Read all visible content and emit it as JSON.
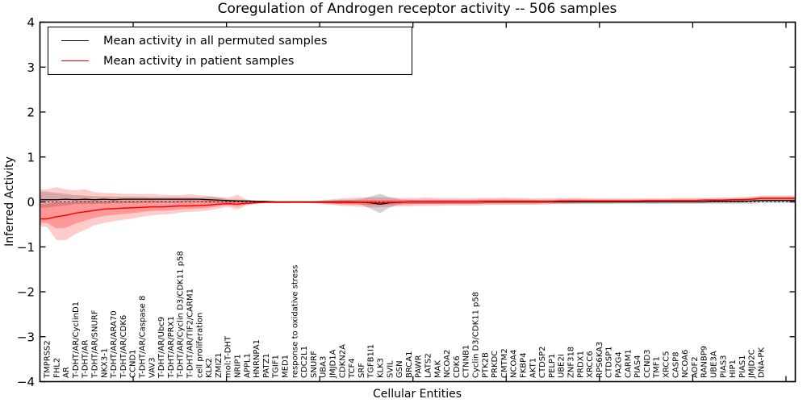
{
  "chart_data": {
    "type": "line",
    "title": "Coregulation of Androgen receptor activity -- 506 samples",
    "xlabel": "Cellular Entities",
    "ylabel": "Inferred Activity",
    "ylim": [
      -4,
      4
    ],
    "y_ticks": [
      4,
      3,
      2,
      1,
      0,
      -1,
      -2,
      -3,
      -4
    ],
    "grid": false,
    "legend_position": "upper left",
    "zero_line": "dotted",
    "colors": {
      "permuted": "#000000",
      "patient": "#ff0000",
      "permuted_band": "#8c8c8c",
      "patient_band": "#ff0000"
    },
    "legend": [
      {
        "label": "Mean activity in all permuted samples",
        "color": "#000000"
      },
      {
        "label": "Mean activity in patient samples",
        "color": "#ff0000"
      }
    ],
    "categories": [
      "TMPRSS2",
      "FHL2",
      "AR",
      "T-DHT/AR/CyclinD1",
      "T-DHT/AR",
      "T-DHT/AR/SNURF",
      "NKX3-1",
      "T-DHT/AR/ARA70",
      "T-DHT/AR/CDK6",
      "CCND1",
      "T-DHT/AR/Caspase 8",
      "VAV3",
      "T-DHT/AR/Ubc9",
      "T-DHT/AR/PRX1",
      "T-DHT/AR/Cyclin D3/CDK11 p58",
      "T-DHT/AR/TIF2/CARM1",
      "cell proliferation",
      "KLK2",
      "ZMIZ1",
      "mol:T-DHT",
      "NRIP1",
      "APPL1",
      "HNRNPA1",
      "PATZ1",
      "TGIF1",
      "MED1",
      "response to oxidative stress",
      "CDC2L1",
      "SNURF",
      "UBA3",
      "JMJD1A",
      "CDKN2A",
      "TCF4",
      "SRF",
      "TGFB1I1",
      "KLK3",
      "SVIL",
      "GSN",
      "BRCA1",
      "PAWR",
      "LATS2",
      "MAK",
      "NCOA2",
      "CDK6",
      "CTNNB1",
      "Cyclin D3/CDK11 p58",
      "PTK2B",
      "PRKDC",
      "CMTM2",
      "NCOA4",
      "FKBP4",
      "AKT1",
      "CTDSP2",
      "PELP1",
      "UBE2I",
      "ZNF318",
      "PRDX1",
      "XRCC6",
      "RPS6KA3",
      "CTDSP1",
      "PA2G4",
      "CARM1",
      "PIAS4",
      "CCND3",
      "TMF1",
      "XRCC5",
      "CASP8",
      "NCOA6",
      "AOF2",
      "RANBP9",
      "UBE3A",
      "PIAS3",
      "HIP1",
      "PIAS1",
      "JMJD2C",
      "DNA-PK"
    ],
    "series": [
      {
        "name": "patient_mean",
        "values": [
          -0.38,
          -0.33,
          -0.3,
          -0.25,
          -0.22,
          -0.19,
          -0.16,
          -0.15,
          -0.14,
          -0.13,
          -0.12,
          -0.11,
          -0.11,
          -0.1,
          -0.09,
          -0.09,
          -0.08,
          -0.07,
          -0.05,
          -0.04,
          -0.05,
          -0.03,
          -0.02,
          -0.01,
          -0.01,
          -0.01,
          -0.01,
          -0.01,
          -0.01,
          -0.01,
          -0.01,
          -0.01,
          -0.01,
          -0.01,
          -0.01,
          -0.02,
          -0.01,
          -0.01,
          0,
          0,
          0,
          0,
          0,
          0,
          0,
          0,
          0.01,
          0.01,
          0.01,
          0.01,
          0.01,
          0.01,
          0.01,
          0.01,
          0.02,
          0.02,
          0.02,
          0.02,
          0.02,
          0.02,
          0.02,
          0.02,
          0.02,
          0.03,
          0.03,
          0.03,
          0.03,
          0.03,
          0.03,
          0.04,
          0.04,
          0.04,
          0.05,
          0.05,
          0.06,
          0.08
        ]
      },
      {
        "name": "patient_band_upper",
        "values": [
          0.28,
          0.33,
          0.28,
          0.26,
          0.28,
          0.22,
          0.2,
          0.2,
          0.18,
          0.18,
          0.17,
          0.18,
          0.16,
          0.15,
          0.15,
          0.17,
          0.15,
          0.13,
          0.11,
          0.09,
          0.16,
          0.05,
          0.03,
          0.02,
          0.02,
          0.02,
          0.02,
          0.02,
          0.02,
          0.04,
          0.06,
          0.08,
          0.09,
          0.1,
          0.1,
          0.1,
          0.1,
          0.09,
          0.09,
          0.09,
          0.1,
          0.09,
          0.09,
          0.09,
          0.08,
          0.09,
          0.09,
          0.09,
          0.1,
          0.09,
          0.09,
          0.08,
          0.08,
          0.08,
          0.09,
          0.09,
          0.09,
          0.08,
          0.08,
          0.08,
          0.08,
          0.08,
          0.08,
          0.08,
          0.08,
          0.08,
          0.09,
          0.09,
          0.09,
          0.09,
          0.09,
          0.1,
          0.1,
          0.11,
          0.12,
          0.14
        ]
      },
      {
        "name": "patient_band_lower",
        "values": [
          -0.55,
          -0.85,
          -0.85,
          -0.72,
          -0.62,
          -0.52,
          -0.47,
          -0.43,
          -0.4,
          -0.37,
          -0.33,
          -0.3,
          -0.28,
          -0.27,
          -0.24,
          -0.22,
          -0.21,
          -0.19,
          -0.15,
          -0.11,
          -0.17,
          -0.08,
          -0.04,
          -0.03,
          -0.03,
          -0.03,
          -0.02,
          -0.02,
          -0.03,
          -0.05,
          -0.07,
          -0.09,
          -0.1,
          -0.11,
          -0.12,
          -0.12,
          -0.11,
          -0.1,
          -0.1,
          -0.09,
          -0.09,
          -0.09,
          -0.08,
          -0.08,
          -0.08,
          -0.08,
          -0.07,
          -0.07,
          -0.07,
          -0.06,
          -0.06,
          -0.06,
          -0.06,
          -0.05,
          -0.05,
          -0.05,
          -0.04,
          -0.04,
          -0.04,
          -0.04,
          -0.03,
          -0.03,
          -0.03,
          -0.03,
          -0.03,
          -0.02,
          -0.02,
          -0.02,
          -0.02,
          -0.02,
          -0.01,
          -0.01,
          0,
          0,
          0.01,
          0.02
        ]
      },
      {
        "name": "permuted_mean",
        "values": [
          0.05,
          0.05,
          0.06,
          0.05,
          0.06,
          0.05,
          0.06,
          0.05,
          0.06,
          0.06,
          0.06,
          0.06,
          0.06,
          0.06,
          0.06,
          0.06,
          0.06,
          0.05,
          0.04,
          0.03,
          0.02,
          0.02,
          0.01,
          0.01,
          0,
          0,
          0,
          0,
          0,
          0,
          0,
          0,
          0,
          -0.01,
          -0.02,
          -0.05,
          -0.02,
          -0.01,
          0,
          0,
          0,
          0,
          0,
          0,
          0,
          0,
          0,
          0,
          0,
          0,
          0,
          0,
          0,
          0,
          0,
          0,
          0,
          0,
          0,
          0,
          0,
          0,
          0,
          0,
          0,
          0,
          0,
          0,
          0,
          0,
          0.01,
          0.01,
          0.01,
          0.01,
          0.02,
          0.03
        ]
      },
      {
        "name": "permuted_band_upper",
        "values": [
          0.23,
          0.2,
          0.18,
          0.15,
          0.14,
          0.13,
          0.12,
          0.12,
          0.11,
          0.11,
          0.11,
          0.1,
          0.1,
          0.1,
          0.1,
          0.1,
          0.09,
          0.12,
          0.1,
          0.06,
          0.05,
          0.05,
          0.03,
          0.02,
          0.02,
          0.02,
          0.02,
          0.02,
          0.02,
          0.03,
          0.04,
          0.05,
          0.05,
          0.06,
          0.12,
          0.18,
          0.1,
          0.06,
          0.05,
          0.05,
          0.05,
          0.05,
          0.05,
          0.05,
          0.05,
          0.05,
          0.05,
          0.05,
          0.05,
          0.05,
          0.05,
          0.05,
          0.04,
          0.04,
          0.04,
          0.04,
          0.04,
          0.04,
          0.04,
          0.04,
          0.04,
          0.04,
          0.04,
          0.04,
          0.04,
          0.04,
          0.04,
          0.04,
          0.04,
          0.04,
          0.04,
          0.04,
          0.04,
          0.04,
          0.04,
          0.08
        ]
      },
      {
        "name": "permuted_band_lower",
        "values": [
          -0.13,
          -0.1,
          -0.08,
          -0.05,
          -0.05,
          -0.04,
          -0.04,
          -0.03,
          -0.03,
          -0.03,
          -0.02,
          -0.02,
          -0.02,
          -0.02,
          -0.02,
          -0.01,
          -0.01,
          -0.02,
          -0.02,
          -0.03,
          -0.02,
          -0.02,
          -0.01,
          -0.02,
          -0.02,
          -0.02,
          -0.02,
          -0.02,
          -0.02,
          -0.03,
          -0.04,
          -0.05,
          -0.05,
          -0.06,
          -0.15,
          -0.25,
          -0.12,
          -0.06,
          -0.05,
          -0.05,
          -0.05,
          -0.05,
          -0.05,
          -0.05,
          -0.05,
          -0.05,
          -0.05,
          -0.05,
          -0.05,
          -0.05,
          -0.05,
          -0.05,
          -0.04,
          -0.04,
          -0.04,
          -0.04,
          -0.04,
          -0.04,
          -0.04,
          -0.04,
          -0.04,
          -0.04,
          -0.04,
          -0.04,
          -0.04,
          -0.04,
          -0.04,
          -0.04,
          -0.04,
          -0.04,
          -0.04,
          -0.04,
          -0.04,
          -0.04,
          -0.04,
          -0.02
        ]
      }
    ]
  }
}
